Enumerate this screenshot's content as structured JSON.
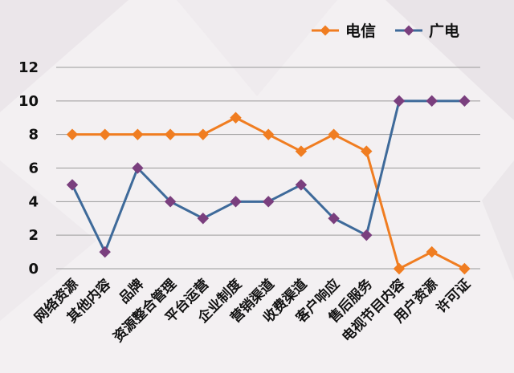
{
  "chart_data": {
    "type": "line",
    "title": "",
    "xlabel": "",
    "ylabel": "",
    "ylim": [
      0,
      12
    ],
    "yticks": [
      0,
      2,
      4,
      6,
      8,
      10,
      12
    ],
    "grid": true,
    "legend_position": "top-right",
    "categories": [
      "网络资源",
      "其他内容",
      "品牌",
      "资源整合管理",
      "平台运营",
      "企业制度",
      "营销渠道",
      "收费渠道",
      "客户响应",
      "售后服务",
      "电视节目内容",
      "用户资源",
      "许可证"
    ],
    "series": [
      {
        "name": "电信",
        "color": "#f07d21",
        "marker_color": "#f07d21",
        "values": [
          8,
          8,
          8,
          8,
          8,
          9,
          8,
          7,
          8,
          7,
          0,
          1,
          0
        ]
      },
      {
        "name": "广电",
        "color": "#3e6a9a",
        "marker_color": "#7a3f7e",
        "values": [
          5,
          1,
          6,
          4,
          3,
          4,
          4,
          5,
          3,
          2,
          10,
          10,
          10
        ]
      }
    ]
  }
}
